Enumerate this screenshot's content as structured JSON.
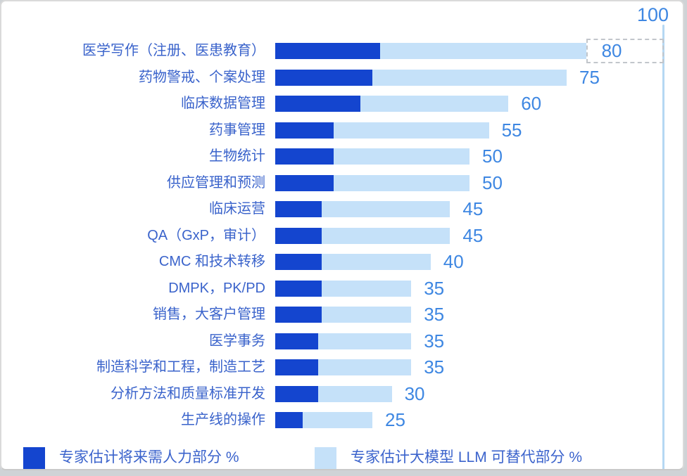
{
  "chart_data": {
    "type": "bar",
    "orientation": "horizontal",
    "stacked": true,
    "grid": false,
    "categories": [
      "医学写作（注册、医患教育）",
      "药物警戒、个案处理",
      "临床数据管理",
      "药事管理",
      "生物统计",
      "供应管理和预测",
      "临床运营",
      "QA（GxP，审计）",
      "CMC 和技术转移",
      "DMPK，PK/PD",
      "销售，大客户管理",
      "医学事务",
      "制造科学和工程，制造工艺",
      "分析方法和质量标准开发",
      "生产线的操作"
    ],
    "value_labels": [
      80,
      75,
      60,
      55,
      50,
      50,
      45,
      45,
      40,
      35,
      35,
      35,
      35,
      30,
      25
    ],
    "series": [
      {
        "name": "专家估计将来需人力部分 %",
        "color": "#1445cf",
        "values": [
          27,
          25,
          22,
          15,
          15,
          15,
          12,
          12,
          12,
          12,
          12,
          11,
          11,
          11,
          7
        ]
      },
      {
        "name": "专家估计大模型 LLM 可替代部分 %",
        "color": "#c5e1f9",
        "values": [
          53,
          50,
          38,
          40,
          35,
          35,
          33,
          33,
          28,
          23,
          23,
          24,
          24,
          19,
          18
        ]
      }
    ],
    "axis": {
      "min": 0,
      "max": 100,
      "max_label": "100"
    },
    "annotation": {
      "dashed_gap_row": 0,
      "from": 80,
      "to": 100
    },
    "legend_position": "bottom"
  },
  "colors": {
    "human_bar": "#1445cf",
    "llm_bar": "#c5e1f9",
    "value_text": "#3e87e2",
    "category_text": "#3a63cb",
    "legend_text": "#3b63cc",
    "axis_line": "#b5d8f3",
    "dash_border": "#c2c6cb"
  }
}
